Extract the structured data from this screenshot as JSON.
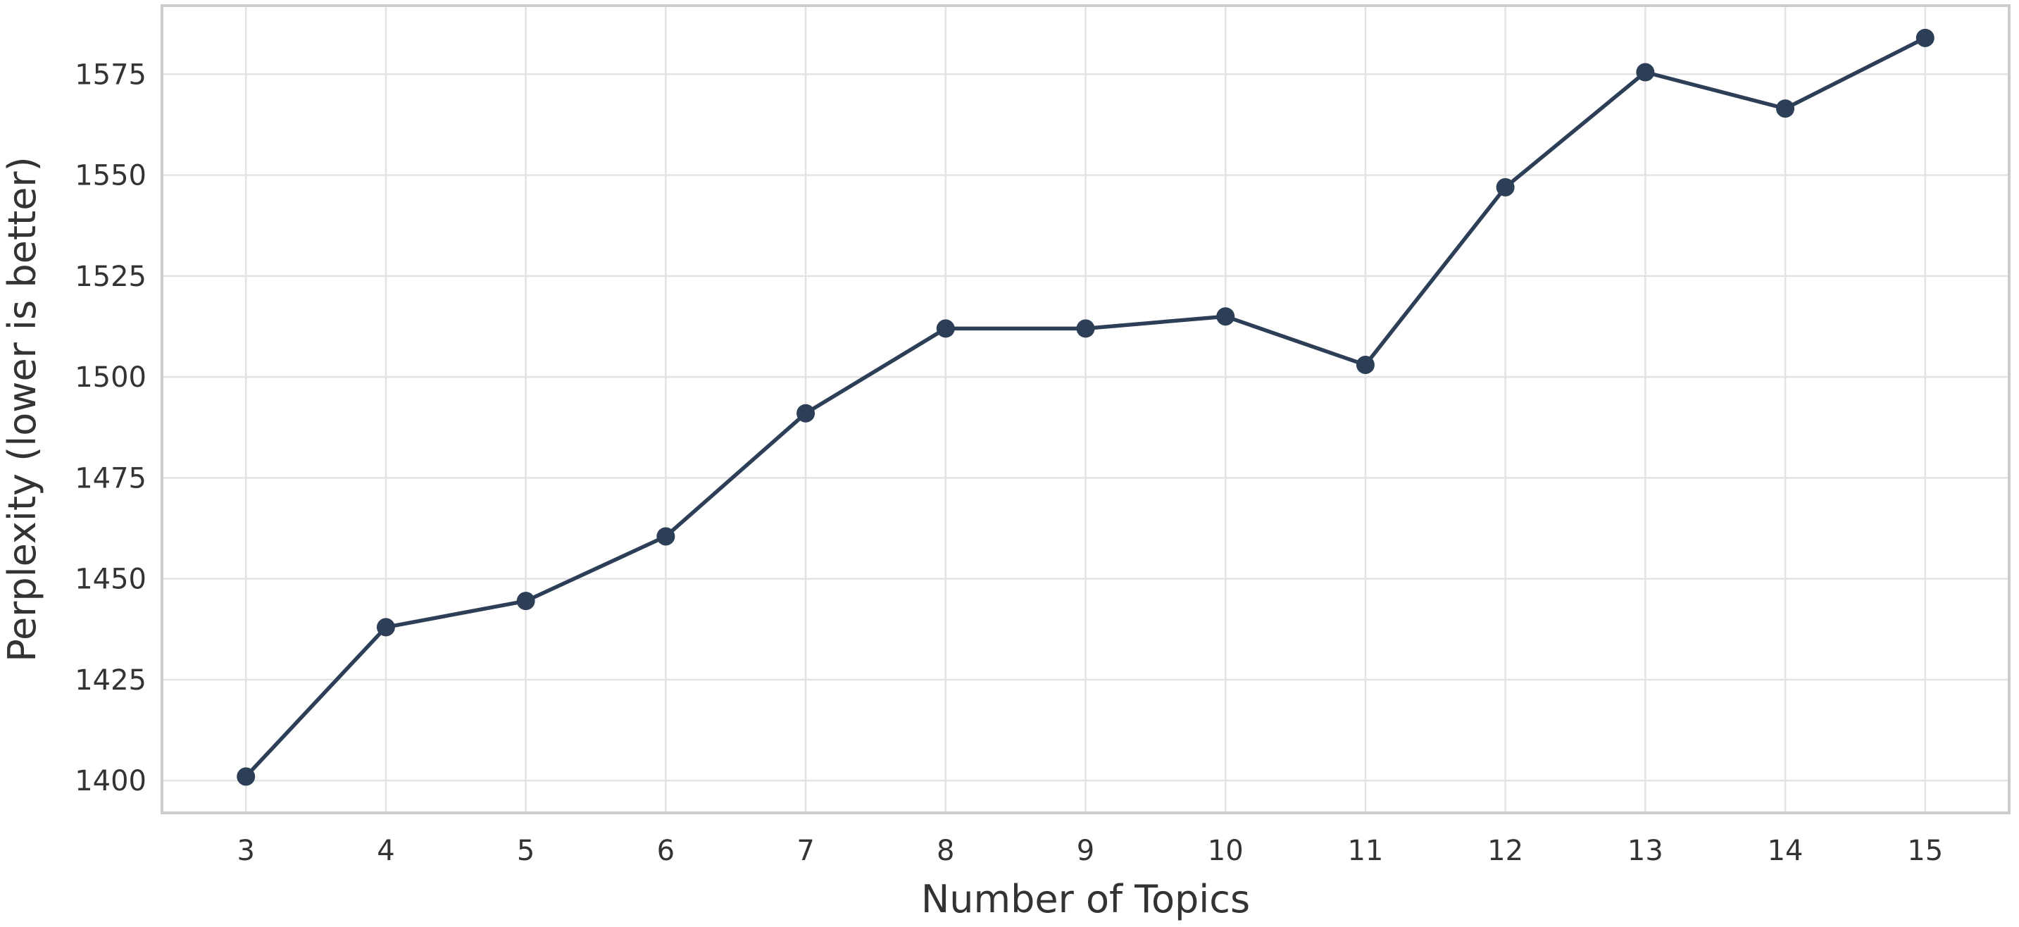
{
  "chart_data": {
    "type": "line",
    "title": "",
    "xlabel": "Number of Topics",
    "ylabel": "Perplexity (lower is better)",
    "x": [
      3,
      4,
      5,
      6,
      7,
      8,
      9,
      10,
      11,
      12,
      13,
      14,
      15
    ],
    "x_tick_labels": [
      "3",
      "4",
      "5",
      "6",
      "7",
      "8",
      "9",
      "10",
      "11",
      "12",
      "13",
      "14",
      "15"
    ],
    "y_ticks": [
      1400,
      1425,
      1450,
      1475,
      1500,
      1525,
      1550,
      1575
    ],
    "y_tick_labels": [
      "1400",
      "1425",
      "1450",
      "1475",
      "1500",
      "1525",
      "1550",
      "1575"
    ],
    "xlim": [
      2.4,
      15.6
    ],
    "ylim": [
      1392,
      1592
    ],
    "grid": true,
    "series": [
      {
        "values": [
          1401,
          1438,
          1444.5,
          1460.5,
          1491,
          1512,
          1512,
          1515,
          1503,
          1547,
          1575.5,
          1566.5,
          1584
        ],
        "color": "#2d3e57",
        "marker": "circle"
      }
    ]
  }
}
